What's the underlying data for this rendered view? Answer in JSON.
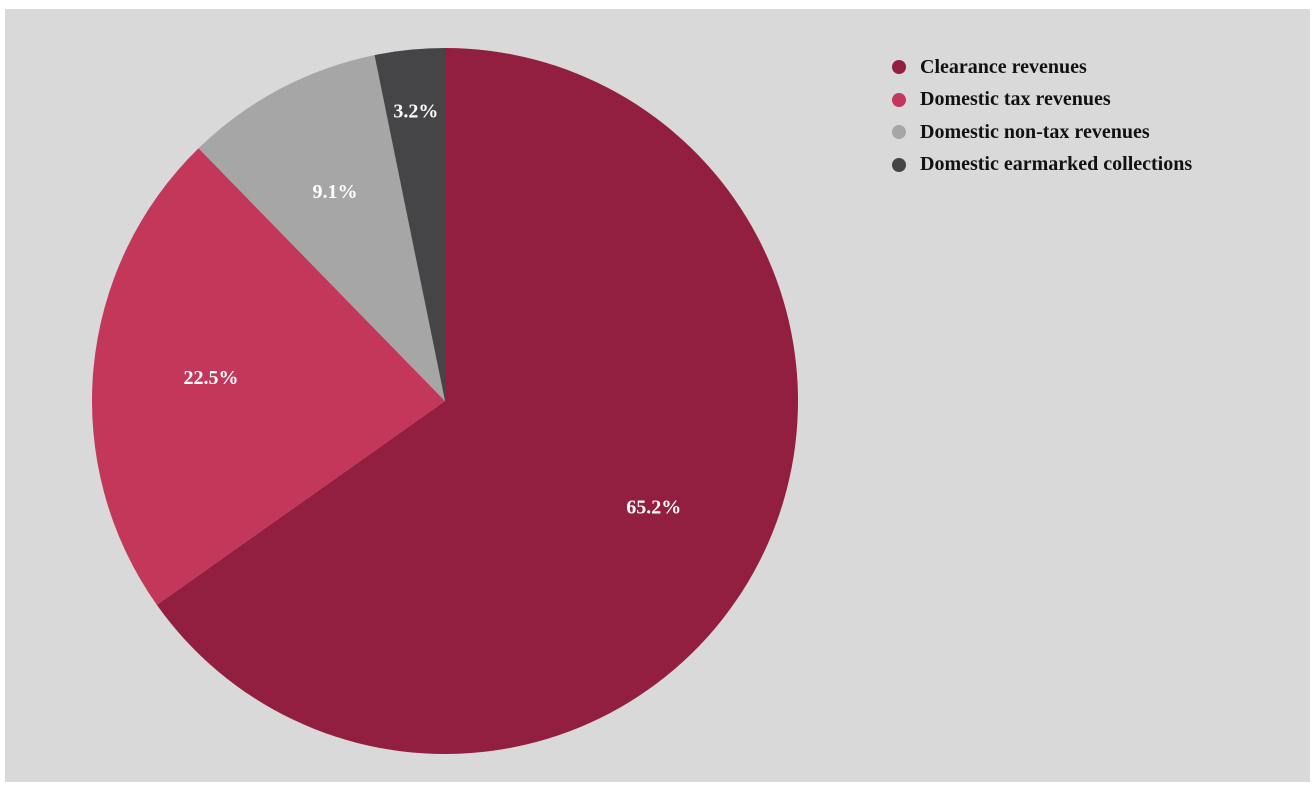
{
  "chart_data": {
    "type": "pie",
    "title": "",
    "categories": [
      "Clearance revenues",
      "Domestic tax revenues",
      "Domestic non-tax revenues",
      "Domestic earmarked collections"
    ],
    "values": [
      65.2,
      22.5,
      9.1,
      3.2
    ],
    "labels": [
      "65.2%",
      "22.5%",
      "9.1%",
      "3.2%"
    ],
    "colors": [
      "#931f40",
      "#c2375a",
      "#a6a6a6",
      "#454547"
    ],
    "start": "12 o'clock",
    "direction": "clockwise",
    "legend_position": "top-right"
  }
}
